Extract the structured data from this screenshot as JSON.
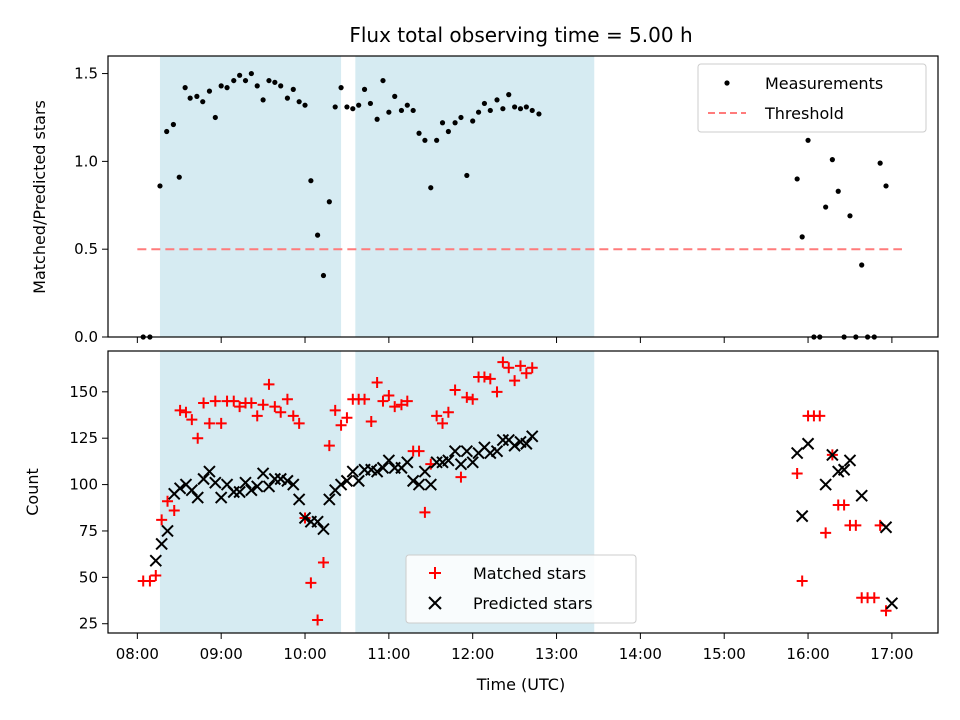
{
  "figure": {
    "title": "Flux total observing time = 5.00 h",
    "xlabel": "Time (UTC)"
  },
  "shaded_spans": [
    {
      "x0": 8.27,
      "x1": 10.43
    },
    {
      "x0": 10.6,
      "x1": 13.45
    }
  ],
  "chart_data": [
    {
      "type": "scatter",
      "ylabel": "Matched/Predicted stars",
      "xlim": [
        7.65,
        17.55
      ],
      "ylim": [
        0,
        1.6
      ],
      "yticks": [
        0.0,
        0.5,
        1.0,
        1.5
      ],
      "ytick_labels": [
        "0.0",
        "0.5",
        "1.0",
        "1.5"
      ],
      "series": [
        {
          "name": "Measurements",
          "marker": "dot",
          "color": "#000000",
          "points": [
            [
              8.07,
              0.0
            ],
            [
              8.15,
              0.0
            ],
            [
              8.27,
              0.86
            ],
            [
              8.35,
              1.17
            ],
            [
              8.43,
              1.21
            ],
            [
              8.5,
              0.91
            ],
            [
              8.57,
              1.42
            ],
            [
              8.63,
              1.36
            ],
            [
              8.71,
              1.37
            ],
            [
              8.78,
              1.34
            ],
            [
              8.86,
              1.4
            ],
            [
              8.93,
              1.25
            ],
            [
              9.0,
              1.43
            ],
            [
              9.07,
              1.42
            ],
            [
              9.15,
              1.46
            ],
            [
              9.22,
              1.49
            ],
            [
              9.29,
              1.46
            ],
            [
              9.36,
              1.5
            ],
            [
              9.43,
              1.43
            ],
            [
              9.5,
              1.35
            ],
            [
              9.57,
              1.46
            ],
            [
              9.64,
              1.45
            ],
            [
              9.71,
              1.43
            ],
            [
              9.79,
              1.36
            ],
            [
              9.86,
              1.41
            ],
            [
              9.93,
              1.34
            ],
            [
              10.0,
              1.32
            ],
            [
              10.07,
              0.89
            ],
            [
              10.15,
              0.58
            ],
            [
              10.22,
              0.35
            ],
            [
              10.29,
              0.77
            ],
            [
              10.36,
              1.31
            ],
            [
              10.43,
              1.42
            ],
            [
              10.5,
              1.31
            ],
            [
              10.57,
              1.3
            ],
            [
              10.64,
              1.32
            ],
            [
              10.71,
              1.41
            ],
            [
              10.78,
              1.33
            ],
            [
              10.86,
              1.24
            ],
            [
              10.93,
              1.46
            ],
            [
              11.0,
              1.28
            ],
            [
              11.07,
              1.37
            ],
            [
              11.15,
              1.29
            ],
            [
              11.22,
              1.32
            ],
            [
              11.29,
              1.29
            ],
            [
              11.36,
              1.16
            ],
            [
              11.43,
              1.12
            ],
            [
              11.5,
              0.85
            ],
            [
              11.57,
              1.12
            ],
            [
              11.64,
              1.22
            ],
            [
              11.71,
              1.17
            ],
            [
              11.79,
              1.22
            ],
            [
              11.86,
              1.25
            ],
            [
              11.93,
              0.92
            ],
            [
              12.0,
              1.23
            ],
            [
              12.07,
              1.28
            ],
            [
              12.14,
              1.33
            ],
            [
              12.21,
              1.29
            ],
            [
              12.29,
              1.35
            ],
            [
              12.36,
              1.3
            ],
            [
              12.43,
              1.38
            ],
            [
              12.5,
              1.31
            ],
            [
              12.57,
              1.3
            ],
            [
              12.64,
              1.31
            ],
            [
              12.71,
              1.29
            ],
            [
              12.79,
              1.27
            ],
            [
              15.87,
              0.9
            ],
            [
              15.93,
              0.57
            ],
            [
              16.0,
              1.12
            ],
            [
              16.07,
              0.0
            ],
            [
              16.14,
              0.0
            ],
            [
              16.21,
              0.74
            ],
            [
              16.29,
              1.01
            ],
            [
              16.36,
              0.83
            ],
            [
              16.43,
              0.0
            ],
            [
              16.5,
              0.69
            ],
            [
              16.57,
              0.0
            ],
            [
              16.64,
              0.41
            ],
            [
              16.71,
              0.0
            ],
            [
              16.79,
              0.0
            ],
            [
              16.86,
              0.99
            ],
            [
              16.93,
              0.86
            ]
          ]
        },
        {
          "name": "Threshold",
          "style": "dashed",
          "color": "#ff7b7b",
          "x": [
            8.0,
            17.12
          ],
          "y": 0.5
        }
      ],
      "legend": "upper right"
    },
    {
      "type": "scatter",
      "ylabel": "Count",
      "xlim": [
        7.65,
        17.55
      ],
      "ylim": [
        20,
        172
      ],
      "yticks": [
        25,
        50,
        75,
        100,
        125,
        150
      ],
      "ytick_labels": [
        "25",
        "50",
        "75",
        "100",
        "125",
        "150"
      ],
      "xticks": [
        8,
        9,
        10,
        11,
        12,
        13,
        14,
        15,
        16,
        17
      ],
      "xtick_labels": [
        "08:00",
        "09:00",
        "10:00",
        "11:00",
        "12:00",
        "13:00",
        "14:00",
        "15:00",
        "16:00",
        "17:00"
      ],
      "series": [
        {
          "name": "Matched stars",
          "marker": "plus",
          "color": "#ff0000",
          "points": [
            [
              8.07,
              48
            ],
            [
              8.15,
              48
            ],
            [
              8.22,
              51
            ],
            [
              8.29,
              81
            ],
            [
              8.36,
              91
            ],
            [
              8.44,
              86
            ],
            [
              8.51,
              140
            ],
            [
              8.58,
              139
            ],
            [
              8.65,
              135
            ],
            [
              8.72,
              125
            ],
            [
              8.79,
              144
            ],
            [
              8.86,
              133
            ],
            [
              8.93,
              145
            ],
            [
              9.0,
              133
            ],
            [
              9.07,
              145
            ],
            [
              9.15,
              145
            ],
            [
              9.22,
              142
            ],
            [
              9.29,
              144
            ],
            [
              9.36,
              144
            ],
            [
              9.43,
              137
            ],
            [
              9.5,
              143
            ],
            [
              9.57,
              154
            ],
            [
              9.64,
              142
            ],
            [
              9.71,
              139
            ],
            [
              9.79,
              146
            ],
            [
              9.86,
              137
            ],
            [
              9.93,
              133
            ],
            [
              10.0,
              82
            ],
            [
              10.07,
              47
            ],
            [
              10.15,
              27
            ],
            [
              10.22,
              58
            ],
            [
              10.29,
              121
            ],
            [
              10.36,
              140
            ],
            [
              10.43,
              132
            ],
            [
              10.5,
              136
            ],
            [
              10.57,
              146
            ],
            [
              10.64,
              146
            ],
            [
              10.71,
              146
            ],
            [
              10.79,
              134
            ],
            [
              10.86,
              155
            ],
            [
              10.93,
              145
            ],
            [
              11.0,
              148
            ],
            [
              11.07,
              142
            ],
            [
              11.15,
              143
            ],
            [
              11.22,
              145
            ],
            [
              11.29,
              118
            ],
            [
              11.36,
              118
            ],
            [
              11.43,
              85
            ],
            [
              11.5,
              111
            ],
            [
              11.57,
              137
            ],
            [
              11.64,
              133
            ],
            [
              11.71,
              139
            ],
            [
              11.79,
              151
            ],
            [
              11.86,
              104
            ],
            [
              11.93,
              147
            ],
            [
              12.0,
              146
            ],
            [
              12.07,
              158
            ],
            [
              12.14,
              158
            ],
            [
              12.21,
              157
            ],
            [
              12.29,
              150
            ],
            [
              12.36,
              166
            ],
            [
              12.43,
              163
            ],
            [
              12.5,
              156
            ],
            [
              12.57,
              164
            ],
            [
              12.64,
              160
            ],
            [
              12.71,
              163
            ],
            [
              15.87,
              106
            ],
            [
              15.93,
              48
            ],
            [
              16.0,
              137
            ],
            [
              16.07,
              137
            ],
            [
              16.14,
              137
            ],
            [
              16.21,
              74
            ],
            [
              16.29,
              116
            ],
            [
              16.36,
              89
            ],
            [
              16.43,
              89
            ],
            [
              16.5,
              78
            ],
            [
              16.57,
              78
            ],
            [
              16.64,
              39
            ],
            [
              16.71,
              39
            ],
            [
              16.79,
              39
            ],
            [
              16.86,
              78
            ],
            [
              16.93,
              32
            ]
          ]
        },
        {
          "name": "Predicted stars",
          "marker": "x",
          "color": "#000000",
          "points": [
            [
              8.22,
              59
            ],
            [
              8.29,
              68
            ],
            [
              8.36,
              75
            ],
            [
              8.44,
              95
            ],
            [
              8.51,
              98
            ],
            [
              8.58,
              100
            ],
            [
              8.65,
              97
            ],
            [
              8.72,
              93
            ],
            [
              8.79,
              103
            ],
            [
              8.86,
              107
            ],
            [
              8.93,
              101
            ],
            [
              9.0,
              93
            ],
            [
              9.07,
              100
            ],
            [
              9.15,
              96
            ],
            [
              9.22,
              96
            ],
            [
              9.29,
              101
            ],
            [
              9.36,
              97
            ],
            [
              9.43,
              99
            ],
            [
              9.5,
              106
            ],
            [
              9.57,
              99
            ],
            [
              9.64,
              103
            ],
            [
              9.71,
              103
            ],
            [
              9.79,
              102
            ],
            [
              9.86,
              100
            ],
            [
              9.93,
              92
            ],
            [
              10.0,
              82
            ],
            [
              10.07,
              80
            ],
            [
              10.15,
              80
            ],
            [
              10.22,
              76
            ],
            [
              10.29,
              92
            ],
            [
              10.36,
              97
            ],
            [
              10.43,
              100
            ],
            [
              10.5,
              102
            ],
            [
              10.57,
              107
            ],
            [
              10.64,
              102
            ],
            [
              10.71,
              108
            ],
            [
              10.79,
              108
            ],
            [
              10.86,
              107
            ],
            [
              10.93,
              109
            ],
            [
              11.0,
              113
            ],
            [
              11.07,
              109
            ],
            [
              11.15,
              109
            ],
            [
              11.22,
              112
            ],
            [
              11.29,
              102
            ],
            [
              11.36,
              100
            ],
            [
              11.43,
              107
            ],
            [
              11.5,
              100
            ],
            [
              11.57,
              112
            ],
            [
              11.64,
              112
            ],
            [
              11.71,
              113
            ],
            [
              11.79,
              118
            ],
            [
              11.86,
              111
            ],
            [
              11.93,
              118
            ],
            [
              12.0,
              112
            ],
            [
              12.07,
              117
            ],
            [
              12.14,
              120
            ],
            [
              12.21,
              117
            ],
            [
              12.29,
              118
            ],
            [
              12.36,
              124
            ],
            [
              12.43,
              124
            ],
            [
              12.5,
              121
            ],
            [
              12.57,
              123
            ],
            [
              12.64,
              122
            ],
            [
              12.71,
              126
            ],
            [
              15.87,
              117
            ],
            [
              15.93,
              83
            ],
            [
              16.0,
              122
            ],
            [
              16.21,
              100
            ],
            [
              16.29,
              116
            ],
            [
              16.36,
              107
            ],
            [
              16.43,
              108
            ],
            [
              16.5,
              113
            ],
            [
              16.64,
              94
            ],
            [
              16.93,
              77
            ],
            [
              17.0,
              36
            ]
          ]
        }
      ],
      "legend": "lower center"
    }
  ]
}
